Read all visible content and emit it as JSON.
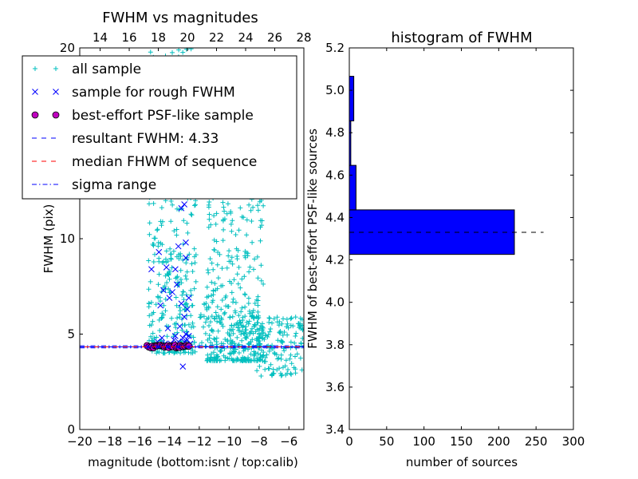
{
  "chart_data": [
    {
      "type": "scatter",
      "title": "FWHM vs magnitudes",
      "xlabel": "magnitude (bottom:isnt / top:calib)",
      "ylabel": "FWHM (pix)",
      "xlim": [
        -20,
        -5
      ],
      "ylim": [
        0,
        20
      ],
      "xticks": [
        -20,
        -18,
        -16,
        -14,
        -12,
        -10,
        -8,
        -6
      ],
      "yticks": [
        0,
        5,
        10,
        15,
        20
      ],
      "top_xticks": [
        14,
        16,
        18,
        20,
        22,
        24,
        26,
        28
      ],
      "top_xlim": [
        12.6,
        28.0
      ],
      "legend_position": "upper-left",
      "series": [
        {
          "name": "all sample",
          "marker": "+",
          "color": "#00bfbf",
          "distribution": {
            "x_range": [
              -15.5,
              -5.0
            ],
            "y_range": [
              2.8,
              20.0
            ],
            "count": 900
          }
        },
        {
          "name": "sample for rough FWHM",
          "marker": "x",
          "color": "#0000ff",
          "points": [
            [
              -13.1,
              3.3
            ],
            [
              -13.0,
              11.8
            ],
            [
              -13.2,
              11.6
            ],
            [
              -12.9,
              9.8
            ],
            [
              -13.4,
              9.6
            ],
            [
              -14.2,
              8.5
            ],
            [
              -13.6,
              8.4
            ],
            [
              -13.5,
              7.6
            ],
            [
              -13.8,
              7.2
            ],
            [
              -14.0,
              6.9
            ],
            [
              -13.2,
              6.6
            ],
            [
              -12.8,
              6.3
            ],
            [
              -14.4,
              7.3
            ],
            [
              -13.0,
              5.9
            ],
            [
              -14.6,
              6.5
            ],
            [
              -12.7,
              6.9
            ],
            [
              -13.3,
              5.4
            ],
            [
              -14.1,
              5.3
            ],
            [
              -12.9,
              5.0
            ],
            [
              -13.6,
              4.9
            ],
            [
              -14.5,
              4.8
            ],
            [
              -12.8,
              4.7
            ],
            [
              -13.1,
              4.8
            ],
            [
              -14.8,
              4.6
            ],
            [
              -13.9,
              4.5
            ],
            [
              -13.4,
              4.6
            ],
            [
              -12.6,
              4.5
            ],
            [
              -14.3,
              4.5
            ],
            [
              -13.7,
              4.7
            ],
            [
              -13.0,
              4.6
            ],
            [
              -14.9,
              4.4
            ],
            [
              -12.9,
              9.0
            ],
            [
              -14.7,
              9.3
            ],
            [
              -15.2,
              8.4
            ],
            [
              -12.7,
              4.9
            ]
          ]
        },
        {
          "name": "best-effort PSF-like sample",
          "marker": "o",
          "color": "#bf00bf",
          "x_range": [
            -15.5,
            -12.6
          ],
          "y_range": [
            4.28,
            4.42
          ],
          "count": 30
        },
        {
          "name": "resultant FWHM: 4.33",
          "style": "dashed",
          "color": "#0000ff",
          "y": 4.33
        },
        {
          "name": "median FHWM of sequence",
          "style": "dashed",
          "color": "#ff0000",
          "y": 4.33
        },
        {
          "name": "sigma range",
          "style": "dashdot",
          "color": "#0000ff",
          "y": [
            4.28,
            4.39
          ]
        }
      ]
    },
    {
      "type": "bar",
      "orientation": "horizontal",
      "title": "histogram of FWHM",
      "xlabel": "number of sources",
      "ylabel": "FWHM of best-effort PSF-like sources",
      "xlim": [
        0,
        300
      ],
      "ylim": [
        3.4,
        5.2
      ],
      "xticks": [
        0,
        50,
        100,
        150,
        200,
        250,
        300
      ],
      "yticks": [
        3.4,
        3.6,
        3.8,
        4.0,
        4.2,
        4.4,
        4.6,
        4.8,
        5.0,
        5.2
      ],
      "bins": [
        {
          "from": 4.226,
          "to": 4.436,
          "count": 221
        },
        {
          "from": 4.436,
          "to": 4.646,
          "count": 9
        },
        {
          "from": 4.646,
          "to": 4.856,
          "count": 2
        },
        {
          "from": 4.856,
          "to": 5.066,
          "count": 6
        }
      ],
      "color": "#0000ff",
      "reference_line": {
        "y": 4.33,
        "x_range": [
          0,
          260
        ],
        "style": "dashed",
        "color": "#000000"
      }
    }
  ]
}
